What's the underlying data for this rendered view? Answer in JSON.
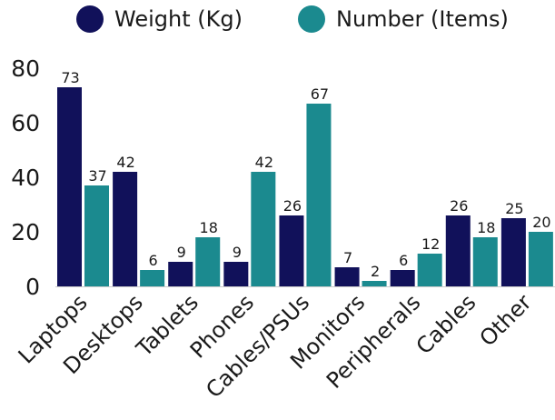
{
  "chart_data": {
    "type": "bar",
    "title": "",
    "xlabel": "",
    "ylabel": "",
    "categories": [
      "Laptops",
      "Desktops",
      "Tablets",
      "Phones",
      "Cables/PSUs",
      "Monitors",
      "Peripherals",
      "Cables",
      "Other"
    ],
    "series": [
      {
        "name": "Weight (Kg)",
        "color": "#11115a",
        "values": [
          73,
          42,
          9,
          9,
          26,
          7,
          6,
          26,
          25
        ]
      },
      {
        "name": "Number (Items)",
        "color": "#1b8a8f",
        "values": [
          37,
          6,
          18,
          42,
          67,
          2,
          12,
          18,
          20
        ]
      }
    ],
    "ylim": [
      0,
      80
    ],
    "yticks": [
      0,
      20,
      40,
      60,
      80
    ],
    "grid": false,
    "legend_position": "top",
    "data_labels": true
  }
}
